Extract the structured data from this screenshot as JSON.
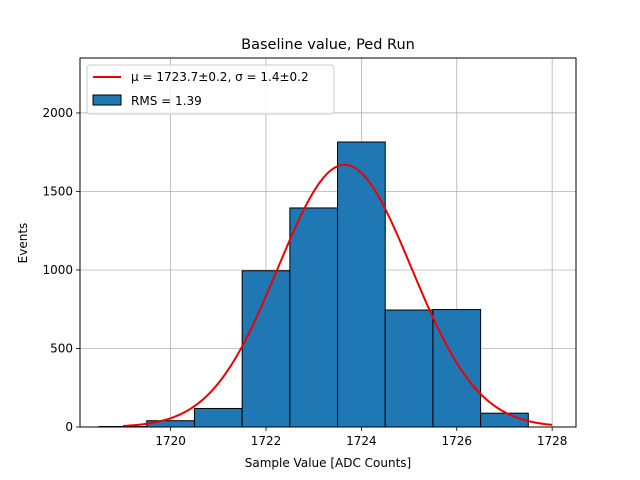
{
  "chart_data": {
    "type": "bar",
    "title": "Baseline value, Ped Run",
    "xlabel": "Sample Value [ADC Counts]",
    "ylabel": "Events",
    "xlim": [
      1718.1,
      1728.5
    ],
    "ylim": [
      0,
      2350
    ],
    "xticks": [
      1720,
      1722,
      1724,
      1726,
      1728
    ],
    "yticks": [
      0,
      500,
      1000,
      1500,
      2000
    ],
    "grid": true,
    "legend_placement": "top-left",
    "colors": {
      "bar_fill": "#1f77b4",
      "bar_edge": "#000000",
      "fit_line": "#ee0000"
    },
    "histogram": {
      "name": "RMS = 1.39",
      "bins": [
        {
          "x0": 1718.5,
          "x1": 1719.5,
          "count": 3
        },
        {
          "x0": 1719.5,
          "x1": 1720.5,
          "count": 40
        },
        {
          "x0": 1720.5,
          "x1": 1721.5,
          "count": 118
        },
        {
          "x0": 1721.5,
          "x1": 1722.5,
          "count": 995
        },
        {
          "x0": 1722.5,
          "x1": 1723.5,
          "count": 1395
        },
        {
          "x0": 1723.5,
          "x1": 1724.5,
          "count": 1815
        },
        {
          "x0": 1724.5,
          "x1": 1725.5,
          "count": 745
        },
        {
          "x0": 1725.5,
          "x1": 1726.5,
          "count": 748
        },
        {
          "x0": 1726.5,
          "x1": 1727.5,
          "count": 88
        }
      ]
    },
    "fit": {
      "name_prefix": "μ = 1723.7±0.2, ",
      "name_suffix": "σ = 1.4±0.2",
      "type": "gaussian",
      "mu": 1723.65,
      "sigma": 1.4,
      "amplitude": 1670,
      "x_range": [
        1719.0,
        1728.0
      ]
    }
  }
}
